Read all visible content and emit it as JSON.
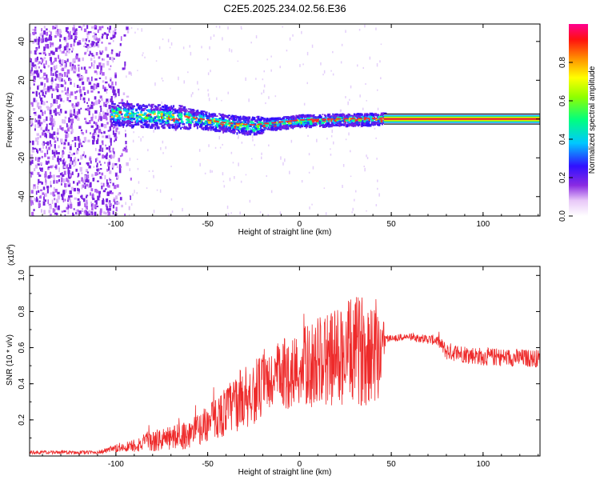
{
  "title": "C2E5.2025.234.02.56.E36",
  "chart_data": [
    {
      "type": "heatmap",
      "xlabel": "Height of straight line (km)",
      "ylabel": "Frequency (Hz)",
      "xlim": [
        -147,
        131
      ],
      "ylim": [
        -50,
        49
      ],
      "xticks": [
        -100,
        -50,
        0,
        50,
        100
      ],
      "yticks": [
        -40,
        -20,
        0,
        20,
        40
      ],
      "colorbar": {
        "label": "Normalized spectral amplitude",
        "range": [
          0,
          1
        ],
        "ticks": [
          "0.0",
          "0.2",
          "0.4",
          "0.6",
          "0.8"
        ]
      },
      "ridge": [
        {
          "x": -100,
          "y": 3
        },
        {
          "x": -60,
          "y": 1
        },
        {
          "x": -40,
          "y": -2
        },
        {
          "x": -25,
          "y": -3
        },
        {
          "x": 0,
          "y": -0.5
        },
        {
          "x": 20,
          "y": 0
        },
        {
          "x": 46,
          "y": 0.5
        },
        {
          "x": 131,
          "y": 0
        }
      ]
    },
    {
      "type": "line",
      "xlabel": "Height of straight line (km)",
      "ylabel": "SNR (10 * v/v)",
      "scale_note": "(x10",
      "scale_exp": "4",
      "xlim": [
        -147,
        131
      ],
      "ylim": [
        0,
        1.05
      ],
      "xticks": [
        -100,
        -50,
        0,
        50,
        100
      ],
      "yticks": [
        "0.2",
        "0.4",
        "0.6",
        "0.8",
        "1.0"
      ],
      "series": [
        {
          "envelope_x": [
            -147,
            -110,
            -95,
            -80,
            -70,
            -60,
            -50,
            -40,
            -30,
            -20,
            -10,
            0,
            10,
            20,
            30,
            40,
            46,
            47,
            60,
            75,
            80,
            100,
            131
          ],
          "envelope_y": [
            0.02,
            0.02,
            0.05,
            0.08,
            0.1,
            0.12,
            0.18,
            0.25,
            0.33,
            0.38,
            0.45,
            0.48,
            0.52,
            0.55,
            0.58,
            0.6,
            0.62,
            0.65,
            0.66,
            0.64,
            0.58,
            0.55,
            0.54
          ],
          "amplitude_y": [
            0.01,
            0.01,
            0.03,
            0.06,
            0.07,
            0.08,
            0.1,
            0.14,
            0.18,
            0.18,
            0.2,
            0.22,
            0.25,
            0.28,
            0.3,
            0.32,
            0.3,
            0.02,
            0.02,
            0.03,
            0.05,
            0.05,
            0.05
          ]
        }
      ]
    }
  ]
}
